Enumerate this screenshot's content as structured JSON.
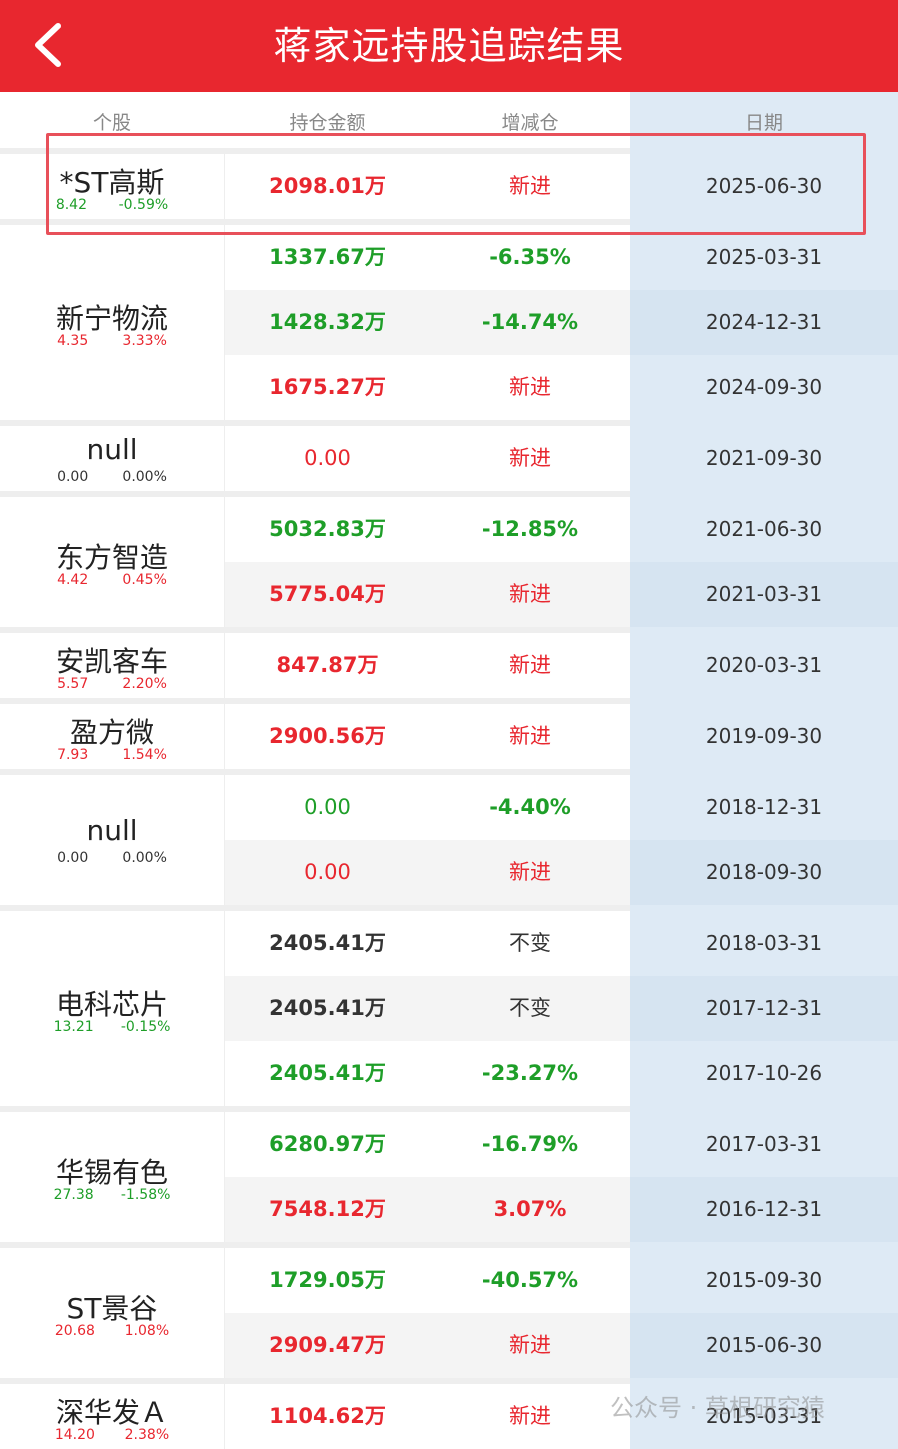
{
  "header": {
    "title": "蒋家远持股追踪结果",
    "back_icon": "chevron-left-icon"
  },
  "columns": [
    "个股",
    "持仓金额",
    "增减仓",
    "日期"
  ],
  "colors": {
    "header": "#e8272f",
    "up": "#e8272f",
    "down": "#1e9e28",
    "date_bg": "#deeaf5"
  },
  "groups": [
    {
      "name": "*ST高斯",
      "price": "8.42",
      "pct": "-0.59%",
      "qc": "green",
      "rows": [
        {
          "amount": "2098.01万",
          "ac": "red",
          "change": "新进",
          "cc": "red",
          "date": "2025-06-30"
        }
      ]
    },
    {
      "name": "新宁物流",
      "price": "4.35",
      "pct": "3.33%",
      "qc": "red",
      "rows": [
        {
          "amount": "1337.67万",
          "ac": "green",
          "change": "-6.35%",
          "cc": "green",
          "date": "2025-03-31"
        },
        {
          "amount": "1428.32万",
          "ac": "green",
          "change": "-14.74%",
          "cc": "green",
          "date": "2024-12-31"
        },
        {
          "amount": "1675.27万",
          "ac": "red",
          "change": "新进",
          "cc": "red",
          "date": "2024-09-30"
        }
      ]
    },
    {
      "name": "null",
      "price": "0.00",
      "pct": "0.00%",
      "qc": "dark",
      "rows": [
        {
          "amount": "0.00",
          "ac": "red",
          "change": "新进",
          "cc": "red",
          "date": "2021-09-30"
        }
      ]
    },
    {
      "name": "东方智造",
      "price": "4.42",
      "pct": "0.45%",
      "qc": "red",
      "rows": [
        {
          "amount": "5032.83万",
          "ac": "green",
          "change": "-12.85%",
          "cc": "green",
          "date": "2021-06-30"
        },
        {
          "amount": "5775.04万",
          "ac": "red",
          "change": "新进",
          "cc": "red",
          "date": "2021-03-31"
        }
      ]
    },
    {
      "name": "安凯客车",
      "price": "5.57",
      "pct": "2.20%",
      "qc": "red",
      "rows": [
        {
          "amount": "847.87万",
          "ac": "red",
          "change": "新进",
          "cc": "red",
          "date": "2020-03-31"
        }
      ]
    },
    {
      "name": "盈方微",
      "price": "7.93",
      "pct": "1.54%",
      "qc": "red",
      "rows": [
        {
          "amount": "2900.56万",
          "ac": "red",
          "change": "新进",
          "cc": "red",
          "date": "2019-09-30"
        }
      ]
    },
    {
      "name": "null",
      "price": "0.00",
      "pct": "0.00%",
      "qc": "dark",
      "rows": [
        {
          "amount": "0.00",
          "ac": "green",
          "change": "-4.40%",
          "cc": "green",
          "date": "2018-12-31"
        },
        {
          "amount": "0.00",
          "ac": "red",
          "change": "新进",
          "cc": "red",
          "date": "2018-09-30"
        }
      ]
    },
    {
      "name": "电科芯片",
      "price": "13.21",
      "pct": "-0.15%",
      "qc": "green",
      "rows": [
        {
          "amount": "2405.41万",
          "ac": "dark",
          "change": "不变",
          "cc": "dark",
          "date": "2018-03-31"
        },
        {
          "amount": "2405.41万",
          "ac": "dark",
          "change": "不变",
          "cc": "dark",
          "date": "2017-12-31"
        },
        {
          "amount": "2405.41万",
          "ac": "green",
          "change": "-23.27%",
          "cc": "green",
          "date": "2017-10-26"
        }
      ]
    },
    {
      "name": "华锡有色",
      "price": "27.38",
      "pct": "-1.58%",
      "qc": "green",
      "rows": [
        {
          "amount": "6280.97万",
          "ac": "green",
          "change": "-16.79%",
          "cc": "green",
          "date": "2017-03-31"
        },
        {
          "amount": "7548.12万",
          "ac": "red",
          "change": "3.07%",
          "cc": "red",
          "date": "2016-12-31"
        }
      ]
    },
    {
      "name": "ST景谷",
      "price": "20.68",
      "pct": "1.08%",
      "qc": "red",
      "rows": [
        {
          "amount": "1729.05万",
          "ac": "green",
          "change": "-40.57%",
          "cc": "green",
          "date": "2015-09-30"
        },
        {
          "amount": "2909.47万",
          "ac": "red",
          "change": "新进",
          "cc": "red",
          "date": "2015-06-30"
        }
      ]
    },
    {
      "name": "深华发Ａ",
      "price": "14.20",
      "pct": "2.38%",
      "qc": "red",
      "rows": [
        {
          "amount": "1104.62万",
          "ac": "red",
          "change": "新进",
          "cc": "red",
          "date": "2015-03-31"
        }
      ]
    }
  ],
  "watermark": "公众号 · 草根研究猿"
}
